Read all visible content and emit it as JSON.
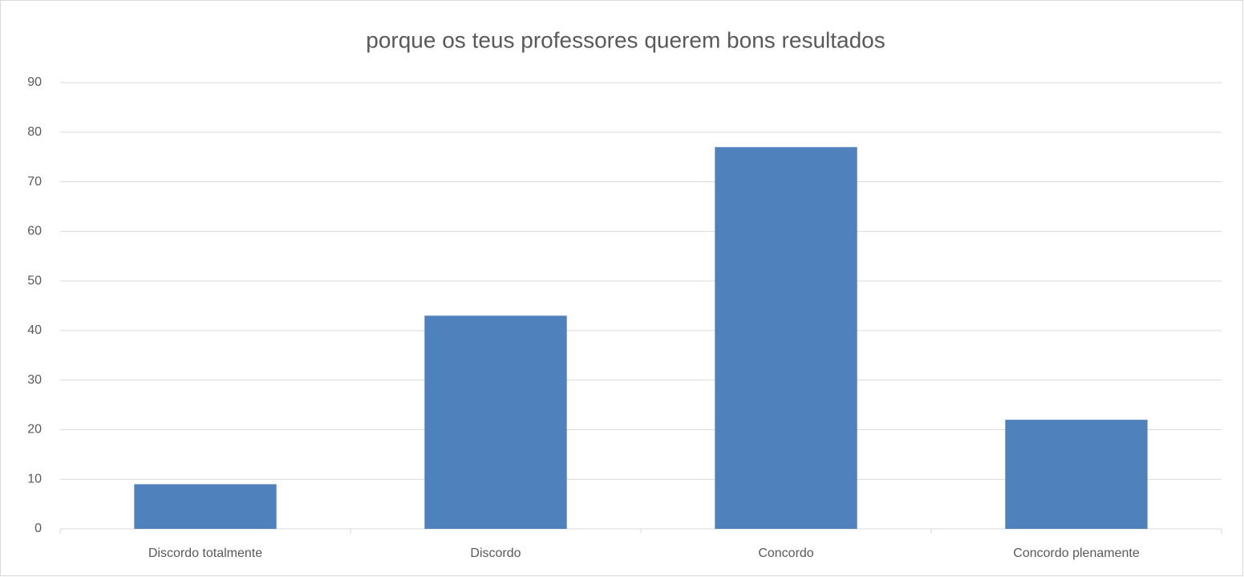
{
  "chart_data": {
    "type": "bar",
    "title": "porque os teus professores querem bons resultados",
    "categories": [
      "Discordo totalmente",
      "Discordo",
      "Concordo",
      "Concordo plenamente"
    ],
    "values": [
      9,
      43,
      77,
      22
    ],
    "color": "#4f81bd",
    "ylim": [
      0,
      90
    ],
    "yticks": [
      0,
      10,
      20,
      30,
      40,
      50,
      60,
      70,
      80,
      90
    ],
    "grid": true
  }
}
